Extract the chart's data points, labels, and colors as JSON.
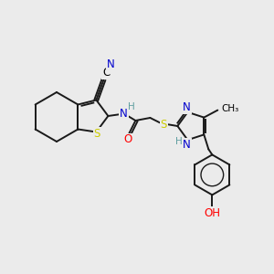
{
  "background_color": "#ebebeb",
  "atom_colors": {
    "C": "#000000",
    "N": "#0000cd",
    "S": "#cccc00",
    "O": "#ff0000",
    "H": "#5f9ea0"
  },
  "bond_color": "#1a1a1a",
  "figsize": [
    3.0,
    3.0
  ],
  "dpi": 100,
  "lw": 1.4,
  "fs": 8.5
}
